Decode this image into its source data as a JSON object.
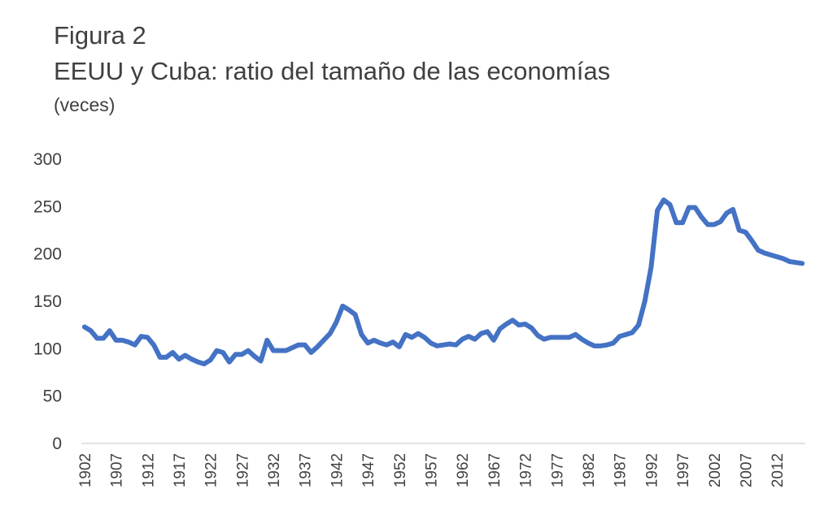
{
  "header": {
    "figure_label": "Figura 2",
    "title": "EEUU y Cuba: ratio del tamaño de las economías",
    "unit": "(veces)"
  },
  "colors": {
    "line": "#4472C4",
    "axis": "#D9D9D9",
    "text": "#404040"
  },
  "chart_data": {
    "type": "line",
    "title": "EEUU y Cuba: ratio del tamaño de las economías",
    "ylabel": "(veces)",
    "xlabel": "",
    "ylim": [
      0,
      300
    ],
    "yticks": [
      0,
      50,
      100,
      150,
      200,
      250,
      300
    ],
    "xtick_labels": [
      "1902",
      "1907",
      "1912",
      "1917",
      "1922",
      "1927",
      "1932",
      "1937",
      "1942",
      "1947",
      "1952",
      "1957",
      "1962",
      "1967",
      "1972",
      "1977",
      "1982",
      "1987",
      "1992",
      "1997",
      "2002",
      "2007",
      "2012"
    ],
    "grid": false,
    "legend": "none",
    "x_start": 1902,
    "x_end": 2016,
    "series": [
      {
        "values": [
          123,
          119,
          111,
          111,
          119,
          109,
          109,
          107,
          104,
          113,
          112,
          104,
          91,
          91,
          96,
          89,
          93,
          89,
          86,
          84,
          88,
          98,
          96,
          86,
          94,
          94,
          98,
          92,
          87,
          109,
          98,
          98,
          98,
          101,
          104,
          104,
          96,
          102,
          109,
          116,
          128,
          145,
          141,
          136,
          115,
          106,
          109,
          106,
          104,
          107,
          102,
          115,
          112,
          116,
          112,
          106,
          103,
          104,
          105,
          104,
          110,
          113,
          110,
          116,
          118,
          109,
          121,
          126,
          130,
          125,
          126,
          122,
          114,
          110,
          112,
          112,
          112,
          112,
          115,
          110,
          106,
          103,
          103,
          104,
          106,
          113,
          115,
          117,
          125,
          150,
          186,
          246,
          257,
          252,
          233,
          233,
          249,
          249,
          239,
          231,
          231,
          234,
          243,
          247,
          225,
          223,
          214,
          204,
          201,
          199,
          197,
          195,
          192,
          191,
          190
        ]
      }
    ]
  }
}
